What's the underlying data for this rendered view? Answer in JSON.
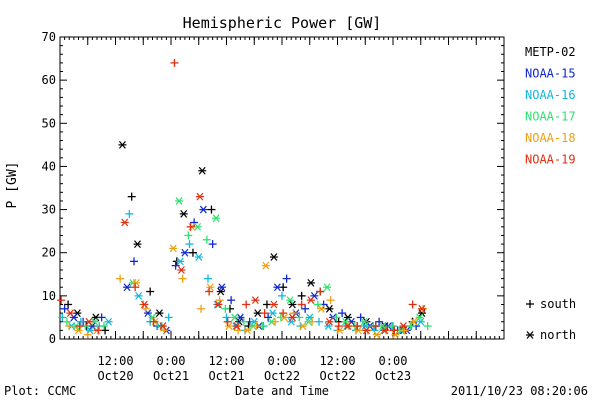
{
  "chart_data": {
    "type": "scatter",
    "title": "Hemispheric Power [GW]",
    "xlabel": "Date and Time",
    "ylabel": "P [GW]",
    "ylim": [
      0,
      70
    ],
    "xlim": [
      "2011-10-20 00:00",
      "2011-10-24 00:00"
    ],
    "yticks": [
      "0",
      "10",
      "20",
      "30",
      "40",
      "50",
      "60",
      "70"
    ],
    "x_time_labels": [
      "12:00",
      "0:00",
      "12:00",
      "0:00",
      "12:00",
      "0:00"
    ],
    "x_date_labels": [
      "Oct20",
      "Oct21",
      "Oct21",
      "Oct22",
      "Oct22",
      "Oct23"
    ],
    "x_label_times": [
      "2011-10-20 12:00",
      "2011-10-21 00:00",
      "2011-10-21 12:00",
      "2011-10-22 00:00",
      "2011-10-22 12:00",
      "2011-10-23 00:00"
    ],
    "grid": false,
    "legend_position": "right",
    "marker_legend": [
      {
        "symbol": "+",
        "label": "south"
      },
      {
        "symbol": "*",
        "label": "north"
      }
    ],
    "series": [
      {
        "name": "METP-02",
        "color": "#000000",
        "x": [
          "2011-10-20 01:45",
          "2011-10-20 03:45",
          "2011-10-20 05:45",
          "2011-10-20 07:45",
          "2011-10-20 09:45",
          "2011-10-20 13:30",
          "2011-10-20 15:30",
          "2011-10-20 16:45",
          "2011-10-20 19:30",
          "2011-10-20 21:30",
          "2011-10-21 01:15",
          "2011-10-21 02:45",
          "2011-10-21 04:45",
          "2011-10-21 06:45",
          "2011-10-21 08:45",
          "2011-10-21 10:45",
          "2011-10-21 12:45",
          "2011-10-21 14:45",
          "2011-10-21 16:45",
          "2011-10-21 18:45",
          "2011-10-21 20:45",
          "2011-10-21 22:15",
          "2011-10-22 00:15",
          "2011-10-22 02:15",
          "2011-10-22 04:15",
          "2011-10-22 06:15",
          "2011-10-22 08:15",
          "2011-10-22 10:15",
          "2011-10-22 12:15",
          "2011-10-22 14:15",
          "2011-10-22 16:15",
          "2011-10-22 18:15",
          "2011-10-22 20:15",
          "2011-10-22 22:15",
          "2011-10-23 00:15",
          "2011-10-23 02:15",
          "2011-10-23 04:15",
          "2011-10-23 06:15"
        ],
        "y": [
          8,
          6,
          3,
          5,
          2,
          45,
          33,
          22,
          11,
          6,
          18,
          29,
          20,
          39,
          30,
          11,
          7,
          4,
          3,
          6,
          8,
          19,
          12,
          8,
          10,
          13,
          11,
          7,
          4,
          5,
          3,
          4,
          3,
          3,
          2,
          2,
          4,
          6
        ]
      },
      {
        "name": "NOAA-15",
        "color": "#1028d0",
        "x": [
          "2011-10-20 01:00",
          "2011-10-20 03:00",
          "2011-10-20 05:00",
          "2011-10-20 07:00",
          "2011-10-20 09:00",
          "2011-10-20 14:30",
          "2011-10-20 16:00",
          "2011-10-20 19:00",
          "2011-10-20 21:00",
          "2011-10-20 23:00",
          "2011-10-21 01:00",
          "2011-10-21 03:00",
          "2011-10-21 05:00",
          "2011-10-21 07:00",
          "2011-10-21 09:00",
          "2011-10-21 11:00",
          "2011-10-21 13:00",
          "2011-10-21 15:00",
          "2011-10-21 17:00",
          "2011-10-21 19:00",
          "2011-10-21 21:00",
          "2011-10-21 23:00",
          "2011-10-22 01:00",
          "2011-10-22 03:00",
          "2011-10-22 05:00",
          "2011-10-22 07:00",
          "2011-10-22 09:00",
          "2011-10-22 11:00",
          "2011-10-22 13:00",
          "2011-10-22 15:00",
          "2011-10-22 17:00",
          "2011-10-22 19:00",
          "2011-10-22 21:00",
          "2011-10-22 23:00",
          "2011-10-23 01:00",
          "2011-10-23 03:00",
          "2011-10-23 05:00"
        ],
        "y": [
          7,
          5,
          4,
          3,
          5,
          12,
          18,
          6,
          3,
          2,
          17,
          20,
          27,
          30,
          22,
          12,
          9,
          5,
          4,
          3,
          5,
          12,
          14,
          6,
          7,
          10,
          8,
          5,
          6,
          4,
          5,
          3,
          4,
          3,
          2,
          2,
          3
        ]
      },
      {
        "name": "NOAA-16",
        "color": "#10b8e0",
        "x": [
          "2011-10-20 00:30",
          "2011-10-20 02:30",
          "2011-10-20 04:30",
          "2011-10-20 06:30",
          "2011-10-20 08:30",
          "2011-10-20 10:30",
          "2011-10-20 15:00",
          "2011-10-20 17:00",
          "2011-10-20 19:30",
          "2011-10-20 21:30",
          "2011-10-20 23:30",
          "2011-10-21 02:00",
          "2011-10-21 04:00",
          "2011-10-21 06:00",
          "2011-10-21 08:00",
          "2011-10-21 10:00",
          "2011-10-21 12:00",
          "2011-10-21 14:00",
          "2011-10-21 16:00",
          "2011-10-21 18:00",
          "2011-10-21 20:00",
          "2011-10-21 22:00",
          "2011-10-22 00:00",
          "2011-10-22 02:00",
          "2011-10-22 04:00",
          "2011-10-22 06:00",
          "2011-10-22 08:00",
          "2011-10-22 10:00",
          "2011-10-22 12:00",
          "2011-10-22 14:00",
          "2011-10-22 16:00",
          "2011-10-22 18:00",
          "2011-10-22 20:00",
          "2011-10-22 22:00",
          "2011-10-23 00:00",
          "2011-10-23 02:00",
          "2011-10-23 04:00",
          "2011-10-23 06:00"
        ],
        "y": [
          5,
          3,
          4,
          2,
          3,
          4,
          29,
          10,
          4,
          3,
          5,
          18,
          22,
          19,
          14,
          8,
          5,
          3,
          2,
          4,
          3,
          6,
          10,
          4,
          3,
          5,
          4,
          3,
          2,
          3,
          2,
          3,
          2,
          2,
          3,
          2,
          3,
          4
        ]
      },
      {
        "name": "NOAA-17",
        "color": "#30e070",
        "x": [
          "2011-10-20 01:30",
          "2011-10-20 03:30",
          "2011-10-20 05:30",
          "2011-10-20 07:30",
          "2011-10-20 09:30",
          "2011-10-20 15:45",
          "2011-10-20 18:00",
          "2011-10-20 20:00",
          "2011-10-20 22:00",
          "2011-10-21 01:45",
          "2011-10-21 03:45",
          "2011-10-21 05:45",
          "2011-10-21 07:45",
          "2011-10-21 09:45",
          "2011-10-21 11:45",
          "2011-10-21 13:45",
          "2011-10-21 15:45",
          "2011-10-21 17:45",
          "2011-10-21 19:45",
          "2011-10-21 21:45",
          "2011-10-21 23:45",
          "2011-10-22 01:45",
          "2011-10-22 03:45",
          "2011-10-22 05:45",
          "2011-10-22 07:45",
          "2011-10-22 09:45",
          "2011-10-22 11:45",
          "2011-10-22 13:45",
          "2011-10-22 15:45",
          "2011-10-22 17:45",
          "2011-10-22 19:45",
          "2011-10-22 21:45",
          "2011-10-22 23:45",
          "2011-10-23 01:45",
          "2011-10-23 03:45",
          "2011-10-23 05:45",
          "2011-10-23 07:30"
        ],
        "y": [
          4,
          3,
          3,
          4,
          3,
          13,
          8,
          5,
          3,
          32,
          24,
          26,
          23,
          28,
          7,
          5,
          4,
          3,
          3,
          4,
          5,
          9,
          5,
          4,
          8,
          12,
          5,
          4,
          3,
          4,
          3,
          3,
          3,
          2,
          3,
          5,
          3
        ]
      },
      {
        "name": "NOAA-18",
        "color": "#f0a010",
        "x": [
          "2011-10-20 02:00",
          "2011-10-20 04:00",
          "2011-10-20 06:00",
          "2011-10-20 08:00",
          "2011-10-20 13:00",
          "2011-10-20 16:30",
          "2011-10-20 18:30",
          "2011-10-20 20:30",
          "2011-10-20 22:30",
          "2011-10-21 00:30",
          "2011-10-21 02:30",
          "2011-10-21 04:30",
          "2011-10-21 06:30",
          "2011-10-21 08:30",
          "2011-10-21 10:30",
          "2011-10-21 12:30",
          "2011-10-21 14:30",
          "2011-10-21 16:30",
          "2011-10-21 18:30",
          "2011-10-21 20:30",
          "2011-10-21 22:30",
          "2011-10-22 00:30",
          "2011-10-22 02:30",
          "2011-10-22 04:30",
          "2011-10-22 06:30",
          "2011-10-22 08:30",
          "2011-10-22 10:30",
          "2011-10-22 12:30",
          "2011-10-22 14:30",
          "2011-10-22 16:30",
          "2011-10-22 18:30",
          "2011-10-22 20:30",
          "2011-10-22 22:30",
          "2011-10-23 00:30",
          "2011-10-23 02:30",
          "2011-10-23 04:30",
          "2011-10-23 06:30"
        ],
        "y": [
          3,
          2,
          1,
          2,
          14,
          13,
          7,
          4,
          2,
          21,
          14,
          26,
          7,
          12,
          9,
          3,
          2,
          2,
          3,
          17,
          4,
          5,
          6,
          3,
          4,
          7,
          9,
          2,
          3,
          2,
          2,
          1,
          2,
          1,
          2,
          4,
          7
        ]
      },
      {
        "name": "NOAA-19",
        "color": "#e03010",
        "x": [
          "2011-10-20 00:15",
          "2011-10-20 02:15",
          "2011-10-20 04:15",
          "2011-10-20 06:15",
          "2011-10-20 08:15",
          "2011-10-20 14:00",
          "2011-10-20 16:15",
          "2011-10-20 18:15",
          "2011-10-20 20:15",
          "2011-10-20 22:15",
          "2011-10-21 00:45",
          "2011-10-21 02:15",
          "2011-10-21 04:15",
          "2011-10-21 06:15",
          "2011-10-21 08:15",
          "2011-10-21 10:15",
          "2011-10-21 12:15",
          "2011-10-21 14:15",
          "2011-10-21 16:15",
          "2011-10-21 18:15",
          "2011-10-21 20:15",
          "2011-10-21 22:15",
          "2011-10-22 00:15",
          "2011-10-22 02:15",
          "2011-10-22 04:15",
          "2011-10-22 06:15",
          "2011-10-22 08:15",
          "2011-10-22 10:15",
          "2011-10-22 12:15",
          "2011-10-22 14:15",
          "2011-10-22 16:15",
          "2011-10-22 18:15",
          "2011-10-22 20:15",
          "2011-10-22 22:15",
          "2011-10-23 00:15",
          "2011-10-23 02:15",
          "2011-10-23 04:15",
          "2011-10-23 06:15"
        ],
        "y": [
          9,
          6,
          3,
          4,
          2,
          27,
          12,
          8,
          4,
          3,
          64,
          16,
          26,
          33,
          11,
          8,
          4,
          3,
          8,
          9,
          6,
          8,
          6,
          5,
          8,
          9,
          11,
          4,
          3,
          3,
          3,
          2,
          3,
          2,
          2,
          3,
          8,
          7
        ]
      }
    ]
  },
  "footer": {
    "left": "Plot: CCMC",
    "center": "Date and Time",
    "right": "2011/10/23 08:20:06"
  }
}
